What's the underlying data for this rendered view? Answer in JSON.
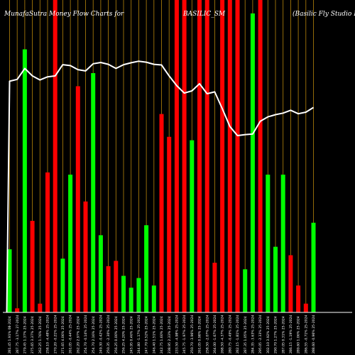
{
  "chart_data": {
    "type": "bar",
    "title_left": "MunafaSutra  Money Flow  Charts for",
    "title_center": "BASILIC_SM",
    "title_right": "(Basilic Fly Studio  Ltd)",
    "ylim": [
      0,
      100
    ],
    "colors": {
      "background": "#000000",
      "up": "#00ff00",
      "down": "#ff0000",
      "grid": "#b8860b",
      "line": "#ffffff",
      "baseline": "#ffffff"
    },
    "bars": [
      {
        "value": 20.2,
        "color": "up",
        "label": "281.45 1.91% 08-2024"
      },
      {
        "value": 1.3,
        "color": "down",
        "label": "287.75 -3.17% 27-2024"
      },
      {
        "value": 84.2,
        "color": "up",
        "label": "279.45 1.37% 25-2024"
      },
      {
        "value": 29.3,
        "color": "down",
        "label": "275.65 3.37% 25-2024"
      },
      {
        "value": 2.8,
        "color": "down",
        "label": "262.25 1.76% 25-2024"
      },
      {
        "value": 44.8,
        "color": "down",
        "label": "258.10 -4.48% 25-2024"
      },
      {
        "value": 100,
        "color": "down",
        "label": "270.20 -0.21% 25-2024"
      },
      {
        "value": 17.2,
        "color": "up",
        "label": "271.65 4.06% 25-2024"
      },
      {
        "value": 44.1,
        "color": "up",
        "label": "261.05 -0.44% 25-2024"
      },
      {
        "value": 72.4,
        "color": "down",
        "label": "262.20 2.97% 25-2024"
      },
      {
        "value": 35.5,
        "color": "down",
        "label": "254.70 -0.14% 25-2024"
      },
      {
        "value": 76.6,
        "color": "up",
        "label": "254.70 2.16% 25-2024"
      },
      {
        "value": 24.7,
        "color": "up",
        "label": "249.30 -0.42% 25-2024"
      },
      {
        "value": 14.8,
        "color": "down",
        "label": "250.35 -2.30% 25-2024"
      },
      {
        "value": 16.5,
        "color": "down",
        "label": "256.25 0.00% 25-2024"
      },
      {
        "value": 11.7,
        "color": "up",
        "label": "256.25 4.20% 25-2024"
      },
      {
        "value": 7.9,
        "color": "up",
        "label": "245.95 0.46% 25-2024"
      },
      {
        "value": 11,
        "color": "up",
        "label": "244.80 -1.17% 25-2024"
      },
      {
        "value": 27.9,
        "color": "up",
        "label": "247.70 0.52% 25-2024"
      },
      {
        "value": 8.6,
        "color": "up",
        "label": "246.40 1.51% 25-2024"
      },
      {
        "value": 63.5,
        "color": "down",
        "label": "242.75 1.60% 25-2024"
      },
      {
        "value": 56.2,
        "color": "down",
        "label": "238.95 2.33% 25-2024"
      },
      {
        "value": 100,
        "color": "down",
        "label": "233.50 -4.98% 25-2024"
      },
      {
        "value": 100,
        "color": "down",
        "label": "245.75 -1.97% 25-2024"
      },
      {
        "value": 55.1,
        "color": "up",
        "label": "250.70 -3.96% 25-2024"
      },
      {
        "value": 100,
        "color": "down",
        "label": "261.05 0.98% 25-2024"
      },
      {
        "value": 100,
        "color": "down",
        "label": "258.50 -2.07% 25-2024"
      },
      {
        "value": 15.9,
        "color": "down",
        "label": "264.00 -1.67% 25-2024"
      },
      {
        "value": 100,
        "color": "down",
        "label": "268.50 -4.37% 25-2024"
      },
      {
        "value": 100,
        "color": "down",
        "label": "280.75 -0.49% 25-2024"
      },
      {
        "value": 100,
        "color": "down",
        "label": "282.15 -1.81% 25-2024"
      },
      {
        "value": 13.8,
        "color": "up",
        "label": "287.35 1.05% 25-2024"
      },
      {
        "value": 95.7,
        "color": "up",
        "label": "284.35 -3.63% 25-2024"
      },
      {
        "value": 100,
        "color": "down",
        "label": "295.05 -2.33% 25-2024"
      },
      {
        "value": 44.1,
        "color": "up",
        "label": "302.10 3.92% 25-2024"
      },
      {
        "value": 21,
        "color": "up",
        "label": "290.70 1.27% 25-2024"
      },
      {
        "value": 44.1,
        "color": "up",
        "label": "287.05 0.31% 25-2024"
      },
      {
        "value": 18.3,
        "color": "down",
        "label": "286.15 -1.19% 25-2024"
      },
      {
        "value": 8.6,
        "color": "down",
        "label": "289.60 1.06% 25-2024"
      },
      {
        "value": 2.8,
        "color": "down",
        "label": "286.55 -0.71% 25-2024"
      },
      {
        "value": 28.7,
        "color": "up",
        "label": "288.60 -0.96% 25-2024"
      }
    ],
    "price_line": [
      74,
      74.6,
      78.1,
      75.7,
      74.4,
      75.4,
      75.7,
      79.3,
      79,
      77.7,
      77.3,
      79.6,
      80,
      79.4,
      78.1,
      79.3,
      79.9,
      80.4,
      80.1,
      79.4,
      79.2,
      75.7,
      72.6,
      70.2,
      70.9,
      73.2,
      70,
      70.6,
      65.2,
      59.5,
      56.6,
      56.9,
      57.1,
      61.2,
      62.6,
      63.3,
      63.8,
      64.7,
      63.6,
      64.1,
      65.6
    ]
  }
}
